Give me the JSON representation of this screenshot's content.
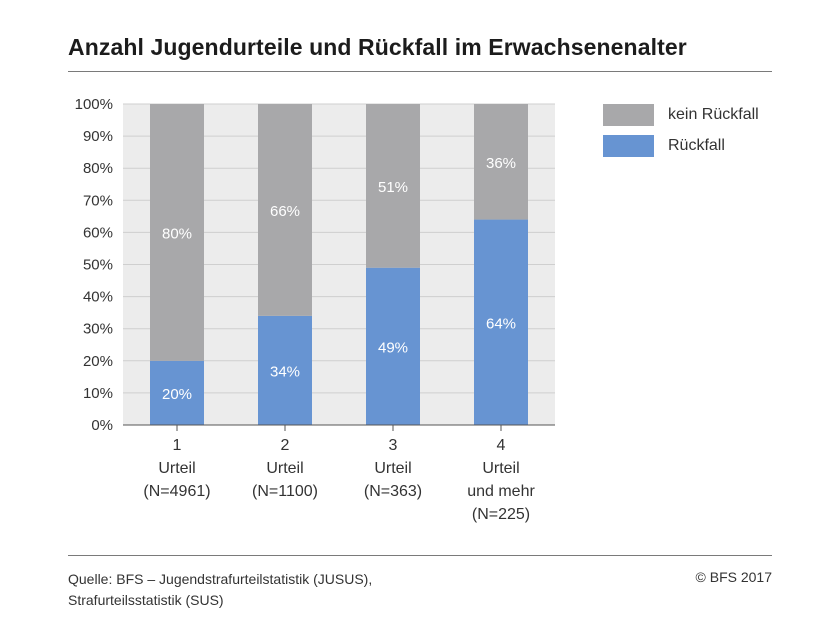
{
  "colors": {
    "rueckfall": "#6794d2",
    "kein_rueckfall": "#a8a8aa",
    "plot_bg": "#ececec",
    "grid": "#cfcfcf"
  },
  "chart_data": {
    "type": "bar",
    "stacked": true,
    "title": "Anzahl Jugendurteile und Rückfall im Erwachsenenalter",
    "categories": [
      [
        "1",
        "Urteil",
        "(N=4961)"
      ],
      [
        "2",
        "Urteil",
        "(N=1100)"
      ],
      [
        "3",
        "Urteil",
        "(N=363)"
      ],
      [
        "4",
        "Urteil",
        "und mehr",
        "(N=225)"
      ]
    ],
    "series": [
      {
        "name": "Rückfall",
        "color": "#6794d2",
        "values": [
          20,
          34,
          49,
          64
        ],
        "labels": [
          "20%",
          "34%",
          "49%",
          "64%"
        ]
      },
      {
        "name": "kein Rückfall",
        "color": "#a8a8aa",
        "values": [
          80,
          66,
          51,
          36
        ],
        "labels": [
          "80%",
          "66%",
          "51%",
          "36%"
        ]
      }
    ],
    "ylim": [
      0,
      100
    ],
    "yticks": [
      "0%",
      "10%",
      "20%",
      "30%",
      "40%",
      "50%",
      "60%",
      "70%",
      "80%",
      "90%",
      "100%"
    ],
    "grid": true,
    "legend_position": "top-right"
  },
  "legend": {
    "items": [
      {
        "label": "kein Rückfall"
      },
      {
        "label": "Rückfall"
      }
    ]
  },
  "footer": {
    "source_line1": "Quelle: BFS – Jugendstrafurteilstatistik (JUSUS),",
    "source_line2": "Strafurteilsstatistik (SUS)",
    "copyright": "© BFS 2017"
  }
}
